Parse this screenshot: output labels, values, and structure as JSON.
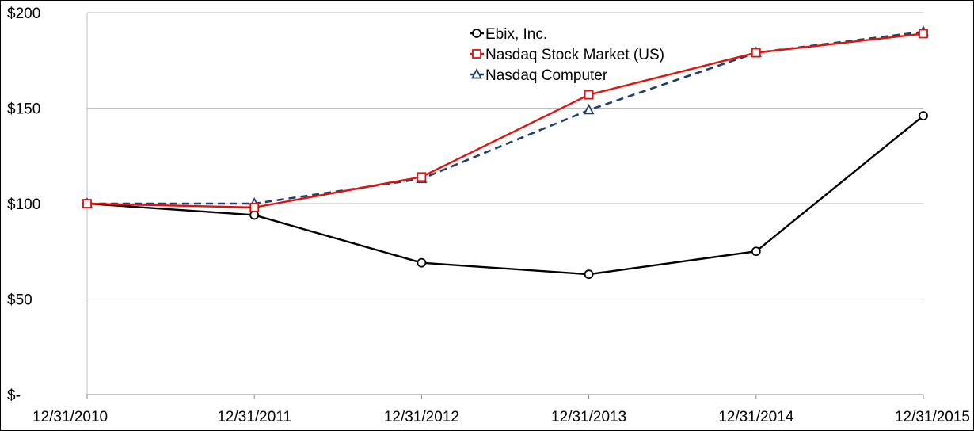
{
  "chart_data": {
    "type": "line",
    "title": "",
    "xlabel": "",
    "ylabel": "",
    "categories": [
      "12/31/2010",
      "12/31/2011",
      "12/31/2012",
      "12/31/2013",
      "12/31/2014",
      "12/31/2015"
    ],
    "ylim": [
      0,
      200
    ],
    "yticks": [
      0,
      50,
      100,
      150,
      200
    ],
    "ytick_labels": [
      "$-",
      "$50",
      "$100",
      "$150",
      "$200"
    ],
    "grid": true,
    "legend_position": "top-center",
    "series": [
      {
        "name": "Ebix, Inc.",
        "values": [
          100,
          94,
          69,
          63,
          75,
          146
        ],
        "color": "#000000",
        "marker": "circle",
        "dash": false
      },
      {
        "name": "Nasdaq Stock Market (US)",
        "values": [
          100,
          98,
          114,
          157,
          179,
          189
        ],
        "color": "#e3120b",
        "marker": "square",
        "dash": false
      },
      {
        "name": "Nasdaq Computer",
        "values": [
          100,
          100,
          113,
          149,
          179,
          190
        ],
        "color": "#1f3f6e",
        "marker": "triangle",
        "dash": true
      }
    ]
  }
}
